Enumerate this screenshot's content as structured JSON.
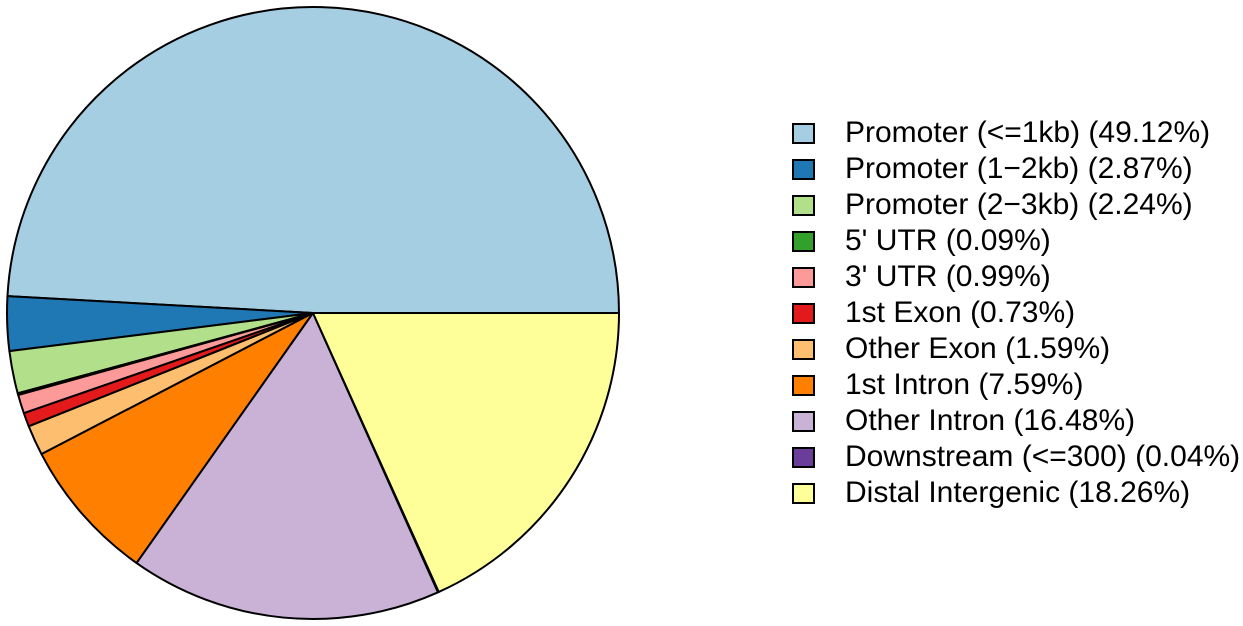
{
  "chart_data": {
    "type": "pie",
    "title": "",
    "legend_position": "right",
    "background_color": "#ffffff",
    "outline_color": "#000000",
    "text_color": "#000000",
    "start_angle_deg": 0,
    "direction": "counterclockwise",
    "value_unit": "%",
    "slices": [
      {
        "label": "Promoter (<=1kb)",
        "pct": "49.12",
        "color": "#a6cee3"
      },
      {
        "label": "Promoter (1−2kb)",
        "pct": "2.87",
        "color": "#1f78b4"
      },
      {
        "label": "Promoter (2−3kb)",
        "pct": "2.24",
        "color": "#b2df8a"
      },
      {
        "label": "5' UTR",
        "pct": "0.09",
        "color": "#33a02c"
      },
      {
        "label": "3' UTR",
        "pct": "0.99",
        "color": "#fb9a99"
      },
      {
        "label": "1st Exon",
        "pct": "0.73",
        "color": "#e31a1c"
      },
      {
        "label": "Other Exon",
        "pct": "1.59",
        "color": "#fdbf6f"
      },
      {
        "label": "1st Intron",
        "pct": "7.59",
        "color": "#ff7f00"
      },
      {
        "label": "Other Intron",
        "pct": "16.48",
        "color": "#cab2d6"
      },
      {
        "label": "Downstream (<=300)",
        "pct": "0.04",
        "color": "#6a3d9a"
      },
      {
        "label": "Distal Intergenic",
        "pct": "18.26",
        "color": "#ffff99"
      }
    ]
  }
}
